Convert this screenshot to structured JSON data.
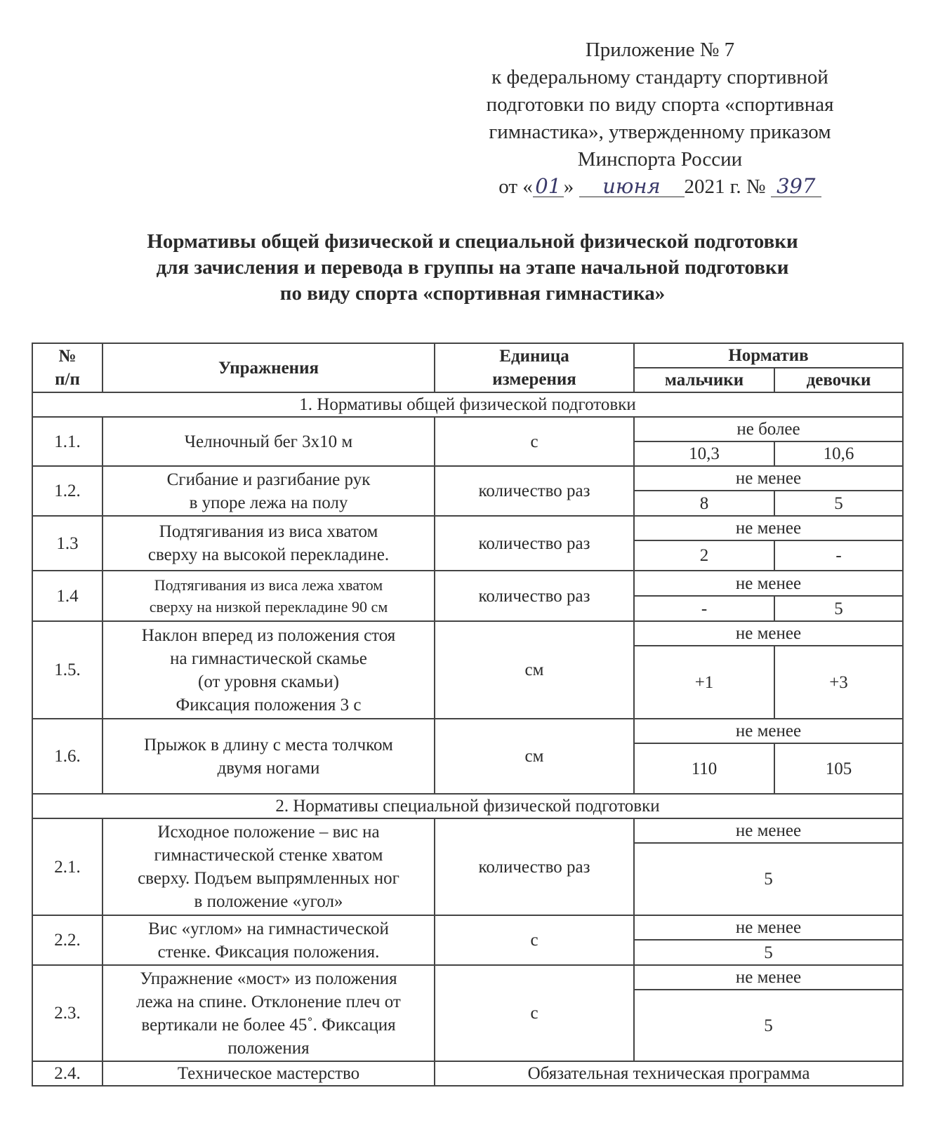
{
  "header": {
    "lines": [
      "Приложение № 7",
      "к федеральному стандарту спортивной",
      "подготовки по виду спорта «спортивная",
      "гимнастика», утвержденному приказом",
      "Минспорта России"
    ],
    "date_prefix": "от «",
    "day": "01",
    "date_mid": "»",
    "month": "июня",
    "year_text": "2021 г. №",
    "order_number": "397"
  },
  "title": [
    "Нормативы общей физической и специальной физической подготовки",
    "для зачисления и перевода в группы на этапе начальной подготовки",
    "по виду спорта «спортивная гимнастика»"
  ],
  "table": {
    "headers": {
      "num": "№\nп/п",
      "exercise": "Упражнения",
      "unit": "Единица\nизмерения",
      "norm": "Норматив",
      "boys": "мальчики",
      "girls": "девочки"
    },
    "sections": [
      {
        "title": "1. Нормативы общей физической подготовки",
        "rows": [
          {
            "num": "1.1.",
            "exercise": "Челночный бег 3x10 м",
            "unit": "с",
            "condition": "не более",
            "boys": "10,3",
            "girls": "10,6"
          },
          {
            "num": "1.2.",
            "exercise": "Сгибание и разгибание рук\nв упоре лежа на полу",
            "unit": "количество раз",
            "condition": "не менее",
            "boys": "8",
            "girls": "5"
          },
          {
            "num": "1.3",
            "exercise": "Подтягивания из виса хватом\nсверху на высокой перекладине.",
            "unit": "количество раз",
            "condition": "не менее",
            "boys": "2",
            "girls": "-"
          },
          {
            "num": "1.4",
            "exercise": "Подтягивания из виса лежа хватом\nсверху на низкой перекладине 90 см",
            "unit": "количество раз",
            "condition": "не менее",
            "boys": "-",
            "girls": "5",
            "small": true
          },
          {
            "num": "1.5.",
            "exercise": "Наклон вперед из положения стоя\nна гимнастической скамье\n(от уровня скамьи)\nФиксация положения 3 с",
            "unit": "см",
            "condition": "не менее",
            "boys": "+1",
            "girls": "+3"
          },
          {
            "num": "1.6.",
            "exercise": "Прыжок в длину с места толчком\nдвумя ногами",
            "unit": "см",
            "condition": "не менее",
            "boys": "110",
            "girls": "105"
          }
        ]
      },
      {
        "title": "2. Нормативы специальной физической подготовки",
        "rows": [
          {
            "num": "2.1.",
            "exercise": "Исходное положение – вис на\nгимнастической стенке хватом\nсверху. Подъем выпрямленных ног\nв положение «угол»",
            "unit": "количество раз",
            "condition": "не менее",
            "both": "5"
          },
          {
            "num": "2.2.",
            "exercise": "Вис «углом» на гимнастической\nстенке. Фиксация положения.",
            "unit": "с",
            "condition": "не менее",
            "both": "5"
          },
          {
            "num": "2.3.",
            "exercise": "Упражнение «мост» из положения\nлежа на спине. Отклонение плеч от\nвертикали не более 45˚. Фиксация\nположения",
            "unit": "с",
            "condition": "не менее",
            "both": "5"
          },
          {
            "num": "2.4.",
            "exercise": "Техническое мастерство",
            "program": "Обязательная техническая программа"
          }
        ]
      }
    ]
  }
}
